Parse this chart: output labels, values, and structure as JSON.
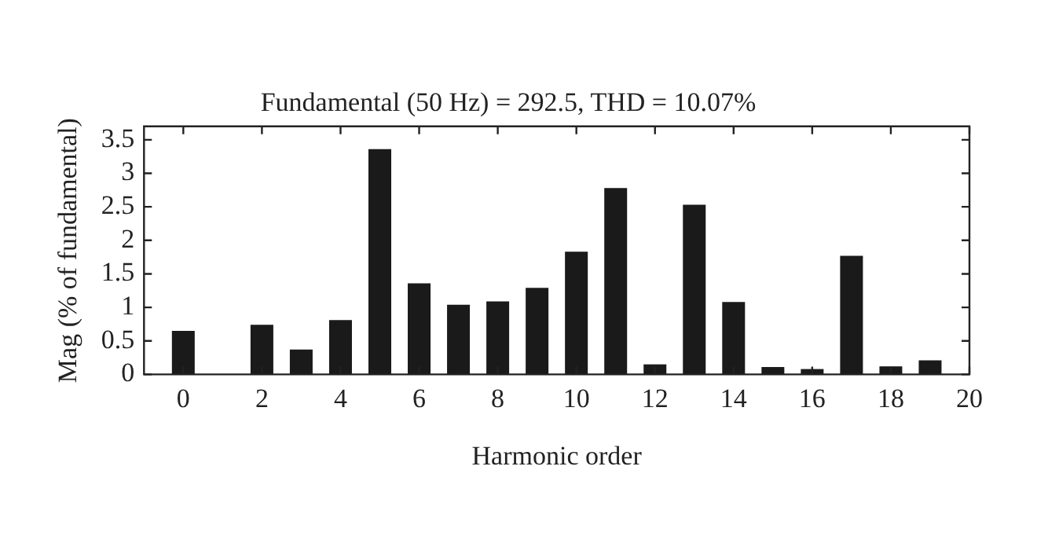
{
  "chart_data": {
    "type": "bar",
    "title": "Fundamental (50 Hz) = 292.5, THD = 10.07%",
    "xlabel": "Harmonic order",
    "ylabel": "Mag (% of fundamental)",
    "x": [
      0,
      1,
      2,
      3,
      4,
      5,
      6,
      7,
      8,
      9,
      10,
      11,
      12,
      13,
      14,
      15,
      16,
      17,
      18,
      19
    ],
    "values": [
      0.65,
      null,
      0.74,
      0.37,
      0.81,
      3.36,
      1.36,
      1.04,
      1.09,
      1.29,
      1.83,
      2.78,
      0.15,
      2.53,
      1.08,
      0.11,
      0.08,
      1.77,
      0.12,
      0.21
    ],
    "color": "#1a1a1a",
    "xlim": [
      -1,
      20
    ],
    "xticks": [
      0,
      2,
      4,
      6,
      8,
      10,
      12,
      14,
      16,
      18,
      20
    ],
    "ylim": [
      0,
      3.7
    ],
    "yticks": [
      0,
      0.5,
      1,
      1.5,
      2,
      2.5,
      3,
      3.5
    ],
    "grid": false,
    "legend": false
  }
}
